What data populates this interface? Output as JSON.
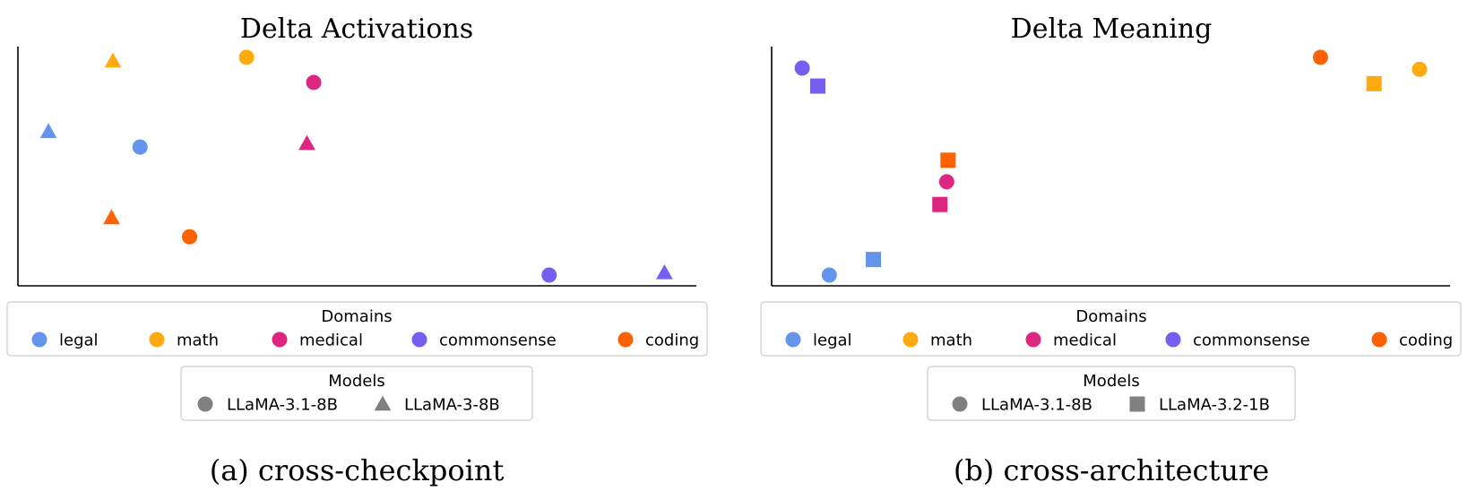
{
  "domains_legend": {
    "title": "Domains",
    "items": [
      {
        "label": "legal",
        "color": "#6495ED"
      },
      {
        "label": "math",
        "color": "#FFAA0F"
      },
      {
        "label": "medical",
        "color": "#DC267F"
      },
      {
        "label": "commonsense",
        "color": "#785EF0"
      },
      {
        "label": "coding",
        "color": "#FE6100"
      }
    ]
  },
  "chart_data": [
    {
      "type": "scatter",
      "title": "Delta Activations",
      "caption": "(a) cross-checkpoint",
      "xlabel": "",
      "ylabel": "",
      "xlim": [
        0,
        100
      ],
      "ylim": [
        0,
        100
      ],
      "grid": false,
      "axes_ticks": false,
      "models_legend": {
        "title": "Models",
        "items": [
          {
            "label": "LLaMA-3.1-8B",
            "marker": "circle"
          },
          {
            "label": "LLaMA-3-8B",
            "marker": "triangle"
          }
        ]
      },
      "points": [
        {
          "domain": "legal",
          "model": "LLaMA-3.1-8B",
          "x": 18,
          "y": 58
        },
        {
          "domain": "legal",
          "model": "LLaMA-3-8B",
          "x": 4.5,
          "y": 64.5
        },
        {
          "domain": "math",
          "model": "LLaMA-3.1-8B",
          "x": 33.7,
          "y": 95.5
        },
        {
          "domain": "math",
          "model": "LLaMA-3-8B",
          "x": 14,
          "y": 94
        },
        {
          "domain": "medical",
          "model": "LLaMA-3.1-8B",
          "x": 43.6,
          "y": 85
        },
        {
          "domain": "medical",
          "model": "LLaMA-3-8B",
          "x": 42.6,
          "y": 59.5
        },
        {
          "domain": "commonsense",
          "model": "LLaMA-3.1-8B",
          "x": 78.3,
          "y": 4.5
        },
        {
          "domain": "commonsense",
          "model": "LLaMA-3-8B",
          "x": 95.3,
          "y": 5.5
        },
        {
          "domain": "coding",
          "model": "LLaMA-3.1-8B",
          "x": 25.3,
          "y": 20.5
        },
        {
          "domain": "coding",
          "model": "LLaMA-3-8B",
          "x": 13.8,
          "y": 28.5
        }
      ]
    },
    {
      "type": "scatter",
      "title": "Delta Meaning",
      "caption": "(b) cross-architecture",
      "xlabel": "",
      "ylabel": "",
      "xlim": [
        0,
        100
      ],
      "ylim": [
        0,
        100
      ],
      "grid": false,
      "axes_ticks": false,
      "models_legend": {
        "title": "Models",
        "items": [
          {
            "label": "LLaMA-3.1-8B",
            "marker": "circle"
          },
          {
            "label": "LLaMA-3.2-1B",
            "marker": "square"
          }
        ]
      },
      "points": [
        {
          "domain": "legal",
          "model": "LLaMA-3.1-8B",
          "x": 8.5,
          "y": 4.5
        },
        {
          "domain": "legal",
          "model": "LLaMA-3.2-1B",
          "x": 15,
          "y": 11
        },
        {
          "domain": "math",
          "model": "LLaMA-3.1-8B",
          "x": 95.5,
          "y": 90.5
        },
        {
          "domain": "math",
          "model": "LLaMA-3.2-1B",
          "x": 88.8,
          "y": 84.5
        },
        {
          "domain": "medical",
          "model": "LLaMA-3.1-8B",
          "x": 25.8,
          "y": 43.5
        },
        {
          "domain": "medical",
          "model": "LLaMA-3.2-1B",
          "x": 24.8,
          "y": 34
        },
        {
          "domain": "commonsense",
          "model": "LLaMA-3.1-8B",
          "x": 4.5,
          "y": 91
        },
        {
          "domain": "commonsense",
          "model": "LLaMA-3.2-1B",
          "x": 6.8,
          "y": 83.5
        },
        {
          "domain": "coding",
          "model": "LLaMA-3.1-8B",
          "x": 80.9,
          "y": 95.5
        },
        {
          "domain": "coding",
          "model": "LLaMA-3.2-1B",
          "x": 26,
          "y": 52.5
        }
      ]
    }
  ]
}
